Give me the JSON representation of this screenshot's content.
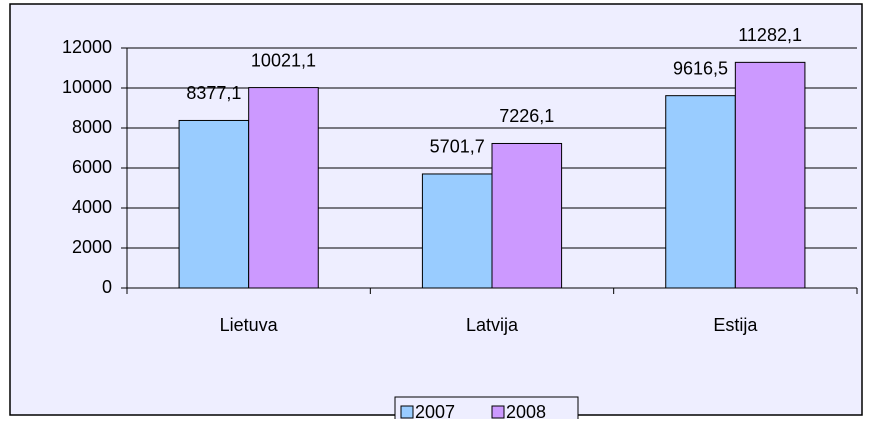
{
  "chart_data": {
    "type": "bar",
    "categories": [
      "Lietuva",
      "Latvija",
      "Estija"
    ],
    "series": [
      {
        "name": "2007",
        "color": "#99ccff",
        "values": [
          8377.1,
          5701.7,
          9616.5
        ],
        "value_labels": [
          "8377,1",
          "5701,7",
          "9616,5"
        ]
      },
      {
        "name": "2008",
        "color": "#cc99ff",
        "values": [
          10021.1,
          7226.1,
          11282.1
        ],
        "value_labels": [
          "10021,1",
          "7226,1",
          "11282,1"
        ]
      }
    ],
    "ylim": [
      0,
      12000
    ],
    "yticks": [
      0,
      2000,
      4000,
      6000,
      8000,
      10000,
      12000
    ],
    "grid": true,
    "legend": "bottom"
  }
}
